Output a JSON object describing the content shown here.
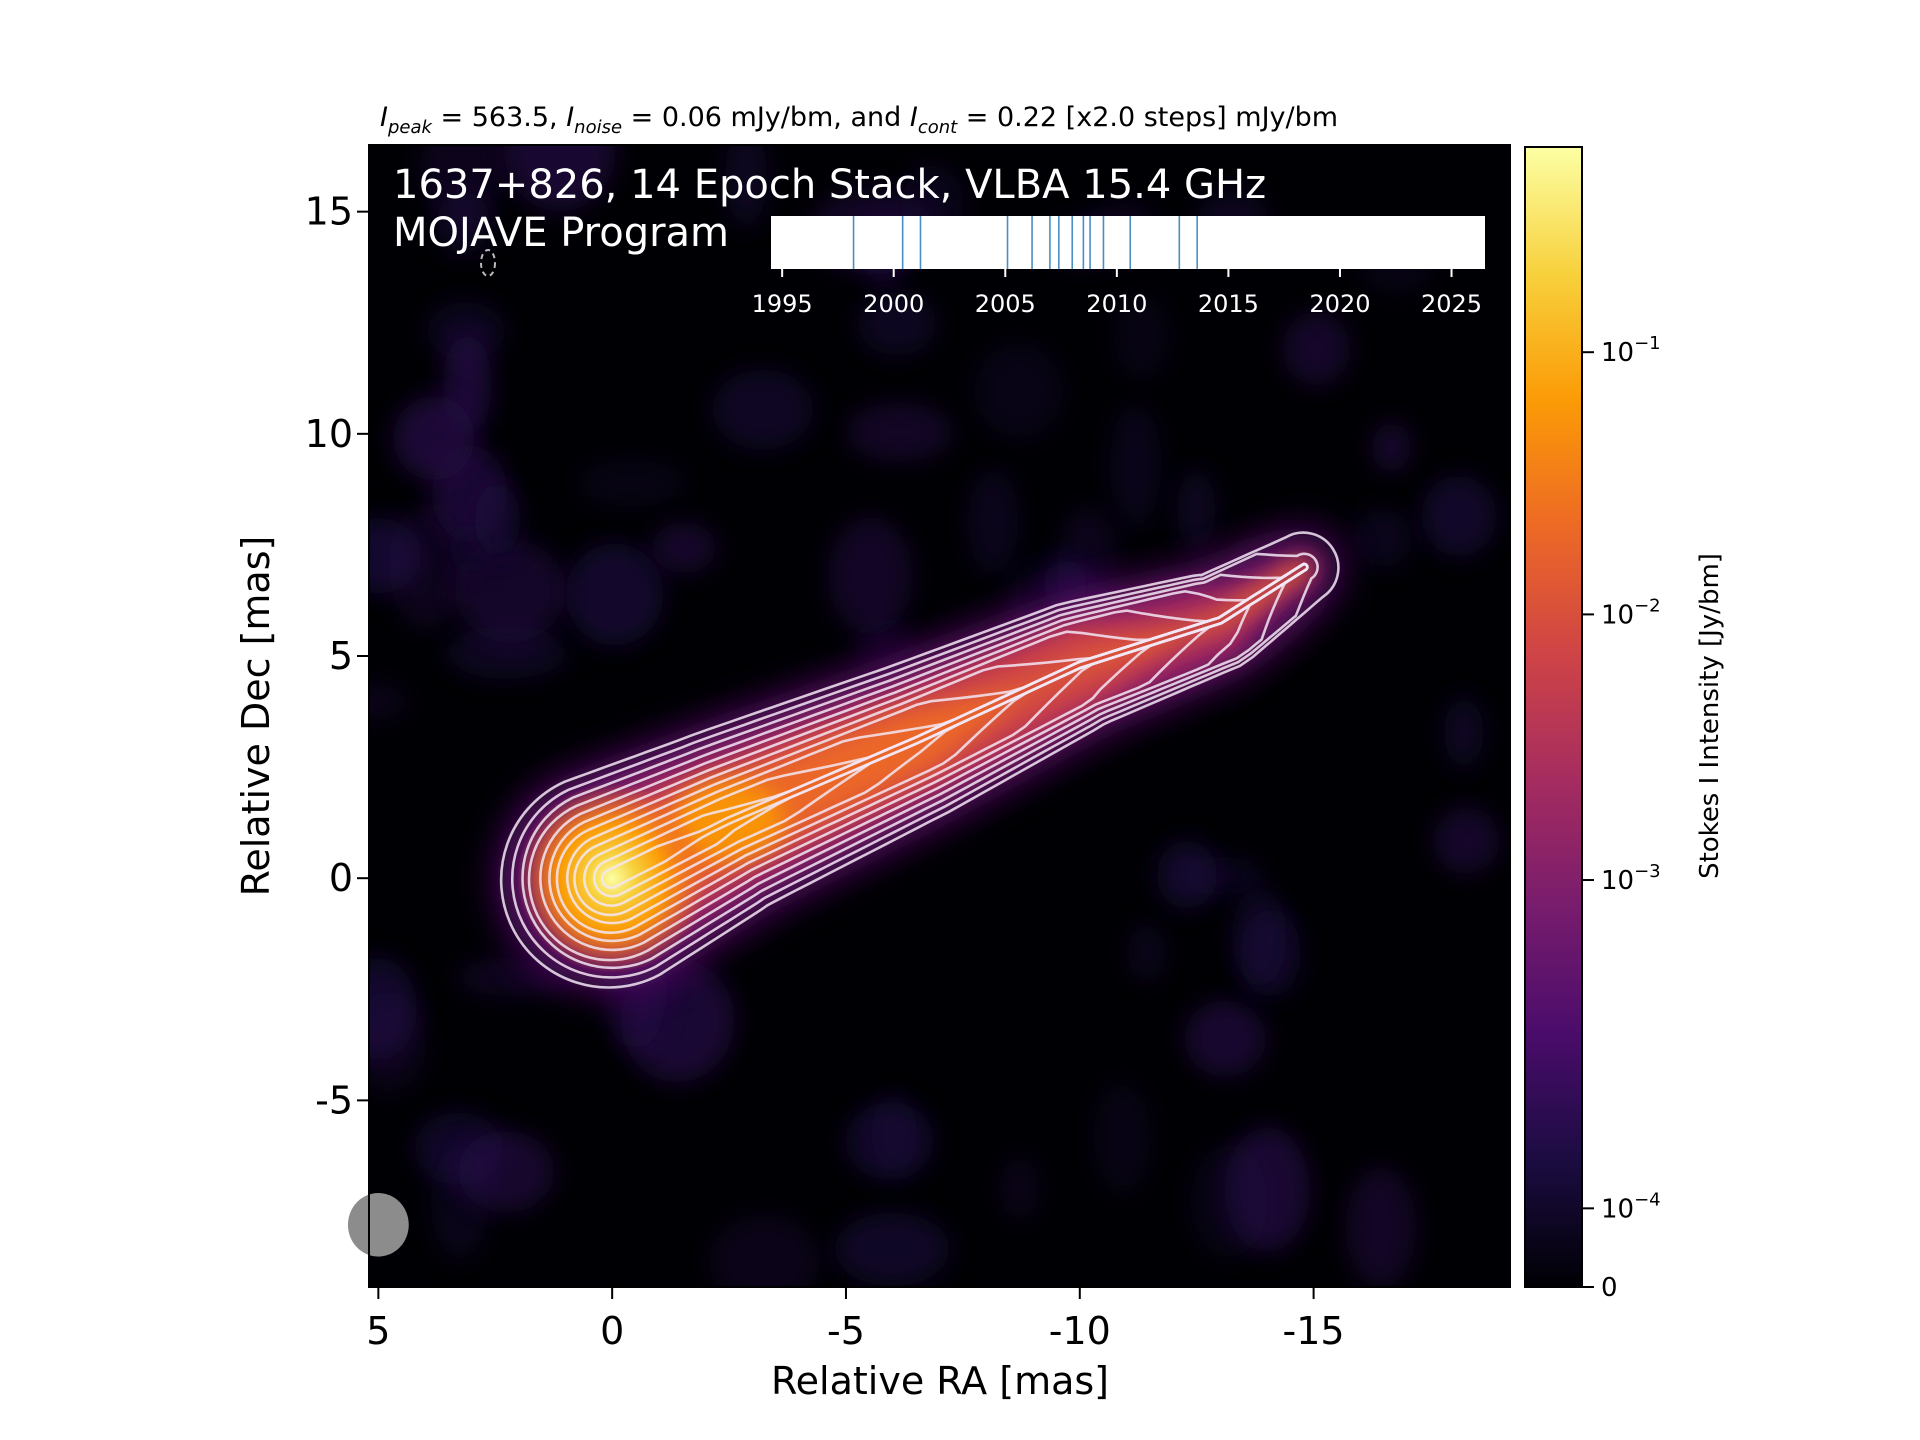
{
  "header": {
    "peak_label": "I",
    "peak_sub": "peak",
    "peak_value": " = 563.5, ",
    "noise_label": "I",
    "noise_sub": "noise",
    "noise_value": " = 0.06 mJy/bm, and ",
    "cont_label": "I",
    "cont_sub": "cont",
    "cont_value": " = 0.22 [x2.0 steps] mJy/bm"
  },
  "overlay": {
    "title_line1": "1637+826, 14 Epoch Stack, VLBA 15.4 GHz",
    "title_line2": "MOJAVE Program"
  },
  "timeline": {
    "xlim": [
      1994.5,
      2026.5
    ],
    "ticks": [
      "1995",
      "2000",
      "2005",
      "2010",
      "2015",
      "2020",
      "2025"
    ],
    "tick_values": [
      1995,
      2000,
      2005,
      2010,
      2015,
      2020,
      2025
    ],
    "epochs": [
      1998.2,
      2000.4,
      2001.2,
      2005.1,
      2006.2,
      2007.0,
      2007.4,
      2008.0,
      2008.8,
      2009.4,
      2010.6,
      2012.8,
      2013.6,
      2008.5
    ],
    "line_color": "#4a8fc4"
  },
  "chart_data": {
    "type": "heatmap",
    "source": "1637+826",
    "xlabel": "Relative RA [mas]",
    "ylabel": "Relative Dec [mas]",
    "xlim": [
      5.2,
      -19.2
    ],
    "ylim": [
      -9.2,
      16.5
    ],
    "x_ticks": [
      5,
      0,
      -5,
      -10,
      -15
    ],
    "x_tick_labels": [
      "5",
      "0",
      "-5",
      "-10",
      "-15"
    ],
    "y_ticks": [
      15,
      10,
      5,
      0,
      -5
    ],
    "y_tick_labels": [
      "15",
      "10",
      "5",
      "0",
      "-5"
    ],
    "colorbar": {
      "label": "Stokes I Intensity [Jy/bm]",
      "scale": "log",
      "ticks": [
        {
          "base": "10",
          "exp": "−1",
          "frac": 0.82
        },
        {
          "base": "10",
          "exp": "−2",
          "frac": 0.59
        },
        {
          "base": "10",
          "exp": "−3",
          "frac": 0.357
        },
        {
          "base": "10",
          "exp": "−4",
          "frac": 0.069
        }
      ],
      "zero_label": "0",
      "colormap": "inferno",
      "stops": [
        "#000004",
        "#1b0c41",
        "#4a0c6b",
        "#781c6d",
        "#a52c60",
        "#cf4446",
        "#ed6925",
        "#fb9b06",
        "#f7d13d",
        "#fcffa4"
      ]
    },
    "jet_ridge": [
      {
        "x": 0.0,
        "y": 0.0
      },
      {
        "x": -2.5,
        "y": 1.3
      },
      {
        "x": -6.5,
        "y": 3.1
      },
      {
        "x": -10.0,
        "y": 4.8
      },
      {
        "x": -13.0,
        "y": 5.8
      },
      {
        "x": -14.8,
        "y": 7.0
      }
    ],
    "contour_levels_mJy": [
      0.22,
      0.44,
      0.88,
      1.76,
      3.52,
      7.04,
      14.08,
      28.16,
      56.32,
      112.64,
      225.28,
      450.56
    ],
    "beam": {
      "x": 5.0,
      "y": -7.8,
      "major_mas": 1.36,
      "minor_mas": 1.3,
      "pa_deg": 0,
      "color": "#8c8c8c"
    }
  }
}
